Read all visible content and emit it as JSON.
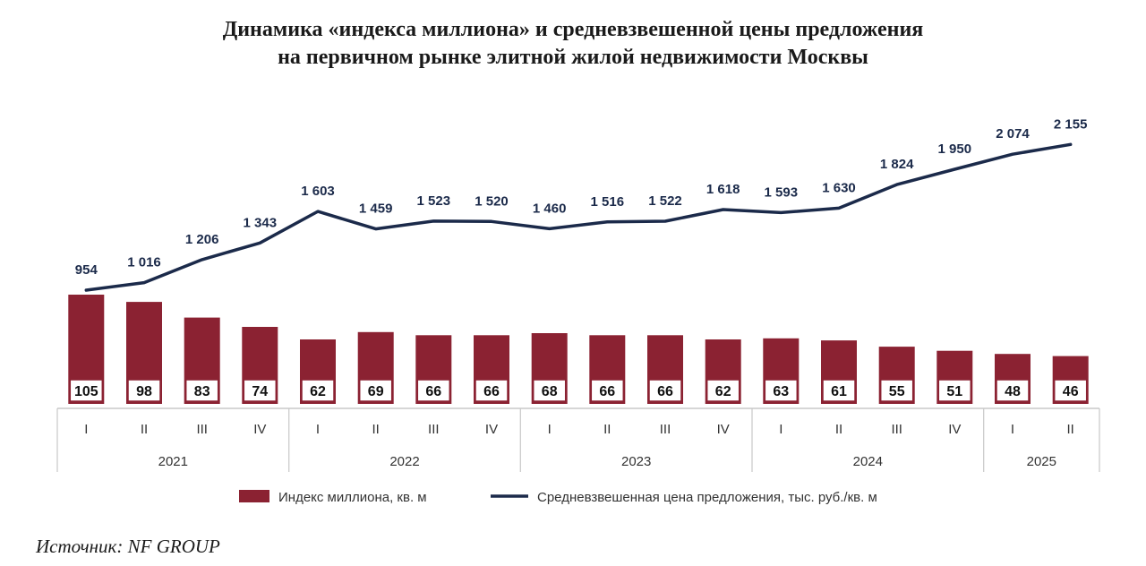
{
  "title": {
    "line1": "Динамика «индекса миллиона» и средневзвешенной цены предложения",
    "line2": "на первичном рынке элитной жилой недвижимости Москвы"
  },
  "colors": {
    "bar": "#8b2232",
    "line": "#1b2a4a",
    "label_box_border": "#8b2232"
  },
  "chart_data": {
    "type": "bar+line",
    "categories": [
      "I",
      "II",
      "III",
      "IV",
      "I",
      "II",
      "III",
      "IV",
      "I",
      "II",
      "III",
      "IV",
      "I",
      "II",
      "III",
      "IV",
      "I",
      "II"
    ],
    "years": [
      {
        "label": "2021",
        "count": 4
      },
      {
        "label": "2022",
        "count": 4
      },
      {
        "label": "2023",
        "count": 4
      },
      {
        "label": "2024",
        "count": 4
      },
      {
        "label": "2025",
        "count": 2
      }
    ],
    "series": [
      {
        "name": "Индекс миллиона, кв. м",
        "type": "bar",
        "values": [
          105,
          98,
          83,
          74,
          62,
          69,
          66,
          66,
          68,
          66,
          66,
          62,
          63,
          61,
          55,
          51,
          48,
          46
        ],
        "labels": [
          "105",
          "98",
          "83",
          "74",
          "62",
          "69",
          "66",
          "66",
          "68",
          "66",
          "66",
          "62",
          "63",
          "61",
          "55",
          "51",
          "48",
          "46"
        ]
      },
      {
        "name": "Средневзвешенная цена предложения, тыс. руб./кв. м",
        "type": "line",
        "values": [
          954,
          1016,
          1206,
          1343,
          1603,
          1459,
          1523,
          1520,
          1460,
          1516,
          1522,
          1618,
          1593,
          1630,
          1824,
          1950,
          2074,
          2155
        ],
        "labels": [
          "954",
          "1 016",
          "1 206",
          "1 343",
          "1 603",
          "1 459",
          "1 523",
          "1 520",
          "1 460",
          "1 516",
          "1 522",
          "1 618",
          "1 593",
          "1 630",
          "1 824",
          "1 950",
          "2 074",
          "2 155"
        ]
      }
    ],
    "legend_position": "bottom"
  },
  "source": "Источник: NF GROUP"
}
